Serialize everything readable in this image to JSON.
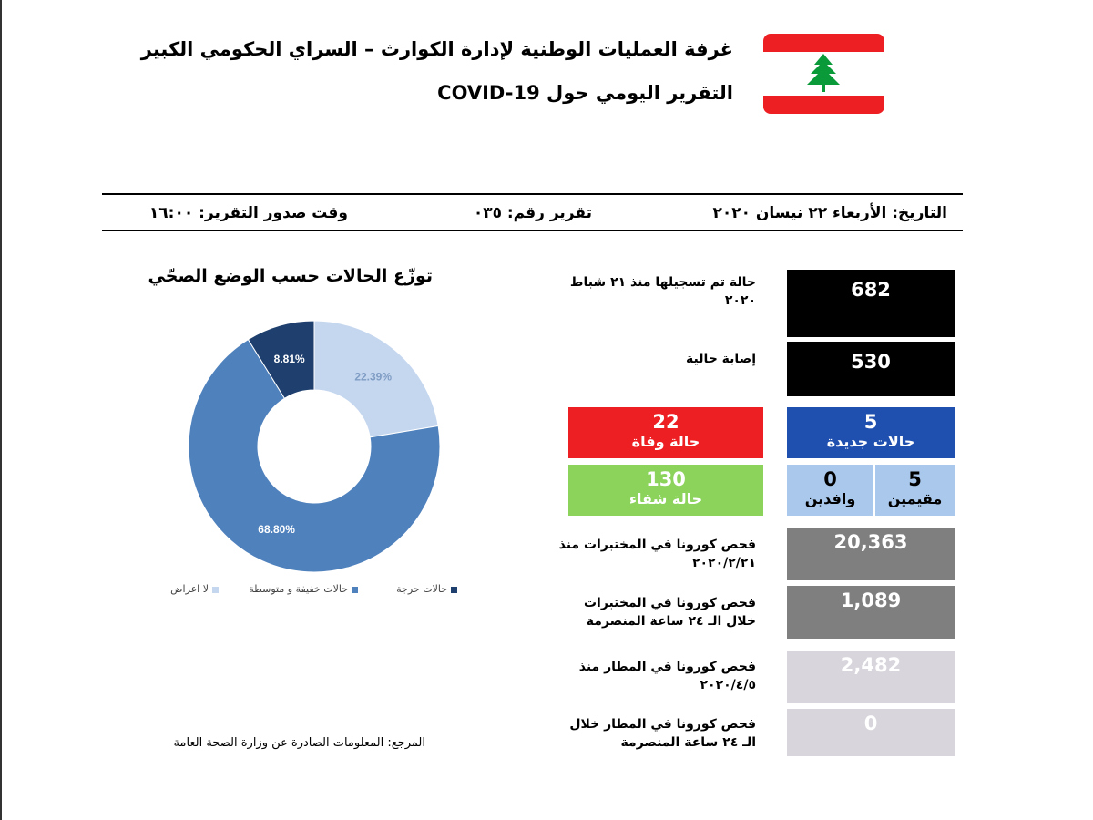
{
  "header": {
    "title_line1": "غرفة العمليات الوطنية لإدارة الكوارث – السراي الحكومي الكبير",
    "title_line2": "التقرير اليومي حول COVID-19"
  },
  "info_bar": {
    "date": "التاريخ: الأربعاء ٢٢ نيسان ٢٠٢٠",
    "report_number": "تقرير رقم: ٠٣٥",
    "issue_time": "وقت صدور التقرير: ١٦:٠٠"
  },
  "chart_data": {
    "type": "pie",
    "title": "توزّع الحالات حسب الوضع الصحّي",
    "slices": [
      {
        "name": "لا اعراض",
        "value": 22.39,
        "label": "22.39%",
        "color": "#c5d7ef"
      },
      {
        "name": "حالات خفيفة و متوسطة",
        "value": 68.8,
        "label": "68.80%",
        "color": "#4f81bd"
      },
      {
        "name": "حالات حرجة",
        "value": 8.81,
        "label": "8.81%",
        "color": "#1f3f6e"
      }
    ],
    "donut": true,
    "legend_position": "bottom"
  },
  "source": "المرجع: المعلومات الصادرة عن وزارة الصحة العامة",
  "stats": {
    "total_label": "حالة تم تسجيلها منذ ٢١ شباط ٢٠٢٠",
    "total_value": "682",
    "active_label": "إصابة حالية",
    "active_value": "530",
    "deaths_value": "22",
    "deaths_label": "حالة وفاة",
    "new_value": "5",
    "new_label": "حالات جديدة",
    "recovered_value": "130",
    "recovered_label": "حالة شفاء",
    "residents_value": "5",
    "residents_label": "مقيمين",
    "arrivals_value": "0",
    "arrivals_label": "وافدين",
    "lab_total_label": "فحص كورونا في المختبرات منذ ٢٠٢٠/٢/٢١",
    "lab_total_value": "20,363",
    "lab_24h_label": "فحص كورونا في المختبرات خلال الـ ٢٤ ساعة المنصرمة",
    "lab_24h_value": "1,089",
    "airport_total_label": "فحص كورونا في المطار منذ ٢٠٢٠/٤/٥",
    "airport_total_value": "2,482",
    "airport_24h_label": "فحص كورونا في المطار خلال الـ ٢٤ ساعة المنصرمة",
    "airport_24h_value": "0"
  },
  "colors": {
    "black_box": "#000000",
    "blue_box": "#1f4faf",
    "red_box": "#ee1f23",
    "green_box": "#8bd35b",
    "lightblue_box": "#a9c8ec",
    "grey_box": "#7f7f7f",
    "lightgrey_box": "#d9d5dc"
  },
  "icons": {
    "flag": "lebanon-flag-icon"
  }
}
